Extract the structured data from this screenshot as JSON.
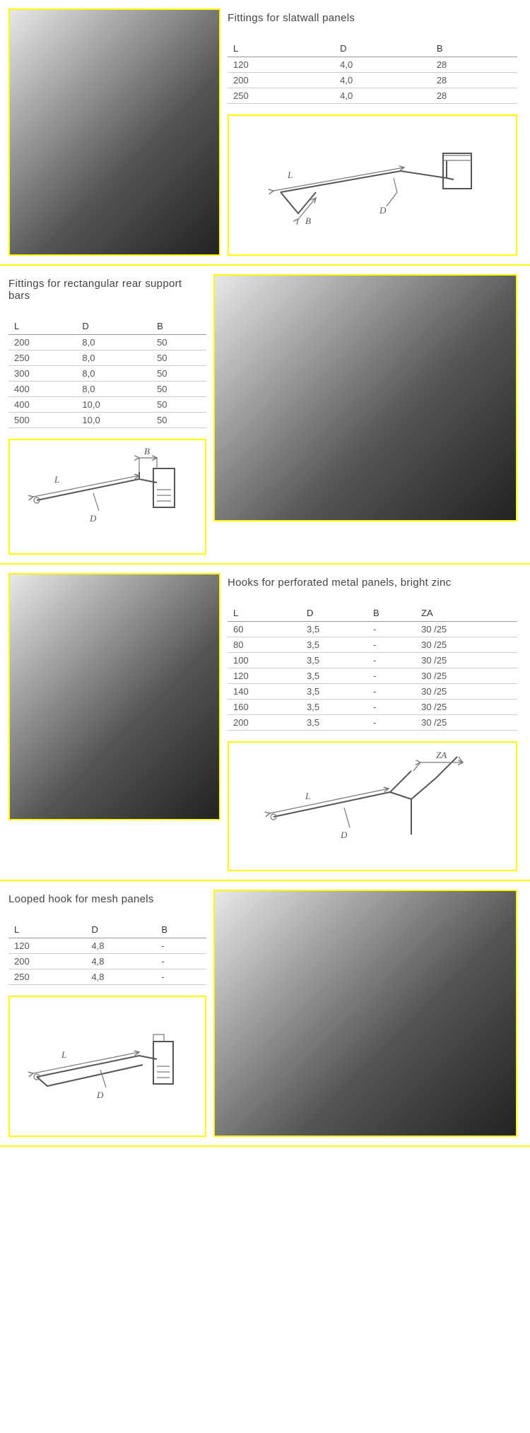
{
  "sections": [
    {
      "layout": "li",
      "title": "Fittings for slatwall panels",
      "cols": [
        "L",
        "D",
        "B"
      ],
      "rows": [
        [
          "120",
          "4,0",
          "28"
        ],
        [
          "200",
          "4,0",
          "28"
        ],
        [
          "250",
          "4,0",
          "28"
        ]
      ],
      "diag": "a",
      "photoW": 300
    },
    {
      "layout": "ri",
      "title": "Fittings for rectangular rear support bars",
      "cols": [
        "L",
        "D",
        "B"
      ],
      "rows": [
        [
          "200",
          "8,0",
          "50"
        ],
        [
          "250",
          "8,0",
          "50"
        ],
        [
          "300",
          "8,0",
          "50"
        ],
        [
          "400",
          "8,0",
          "50"
        ],
        [
          "400",
          "10,0",
          "50"
        ],
        [
          "500",
          "10,0",
          "50"
        ]
      ],
      "diag": "b",
      "photoW": 430
    },
    {
      "layout": "li",
      "title": "Hooks for perforated metal panels, bright zinc",
      "cols": [
        "L",
        "D",
        "B",
        "ZA"
      ],
      "rows": [
        [
          "60",
          "3,5",
          "-",
          "30 /25"
        ],
        [
          "80",
          "3,5",
          "-",
          "30 /25"
        ],
        [
          "100",
          "3,5",
          "-",
          "30 /25"
        ],
        [
          "120",
          "3,5",
          "-",
          "30 /25"
        ],
        [
          "140",
          "3,5",
          "-",
          "30 /25"
        ],
        [
          "160",
          "3,5",
          "-",
          "30 /25"
        ],
        [
          "200",
          "3,5",
          "-",
          "30 /25"
        ]
      ],
      "diag": "c",
      "photoW": 300
    },
    {
      "layout": "ri",
      "title": "Looped hook for mesh panels",
      "cols": [
        "L",
        "D",
        "B"
      ],
      "rows": [
        [
          "120",
          "4,8",
          "-"
        ],
        [
          "200",
          "4,8",
          "-"
        ],
        [
          "250",
          "4,8",
          "-"
        ]
      ],
      "diag": "d",
      "photoW": 430
    }
  ],
  "colors": {
    "accent": "#fefe00"
  }
}
